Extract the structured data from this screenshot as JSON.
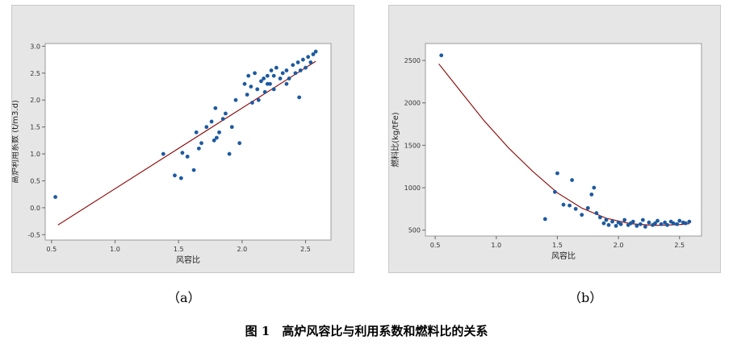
{
  "figure": {
    "sublabel_a": "（a）",
    "sublabel_b": "（b）",
    "caption": "图 1　高炉风容比与利用系数和燃料比的关系"
  },
  "colors": {
    "points": "#1d5aa0",
    "fit": "#8b0000",
    "panel_bg": "#e6e6e6",
    "plot_bg": "#ffffff"
  },
  "chart_data": [
    {
      "type": "scatter",
      "xlabel": "风容比",
      "ylabel": "高炉利用系数 (t/m3.d)",
      "xlim": [
        0.45,
        2.7
      ],
      "ylim": [
        -0.6,
        3.05
      ],
      "xticks": [
        "0.5",
        "1.0",
        "1.5",
        "2.0",
        "2.5"
      ],
      "yticks": [
        "-0.5",
        "0.0",
        "0.5",
        "1.0",
        "1.5",
        "2.0",
        "2.5",
        "3.0"
      ],
      "grid": false,
      "fit_line": {
        "x": [
          0.55,
          2.58
        ],
        "y": [
          -0.32,
          2.72
        ]
      },
      "x": [
        0.53,
        1.38,
        1.47,
        1.52,
        1.53,
        1.57,
        1.62,
        1.64,
        1.66,
        1.68,
        1.72,
        1.76,
        1.78,
        1.79,
        1.8,
        1.82,
        1.85,
        1.87,
        1.9,
        1.92,
        1.95,
        1.98,
        2.02,
        2.04,
        2.05,
        2.07,
        2.08,
        2.1,
        2.12,
        2.13,
        2.15,
        2.17,
        2.18,
        2.2,
        2.22,
        2.23,
        2.25,
        2.27,
        2.3,
        2.32,
        2.35,
        2.37,
        2.4,
        2.42,
        2.44,
        2.46,
        2.48,
        2.5,
        2.52,
        2.54,
        2.56,
        2.58,
        2.2,
        2.25,
        2.35,
        2.45
      ],
      "y": [
        0.2,
        1.0,
        0.6,
        0.55,
        1.02,
        0.95,
        0.7,
        1.4,
        1.1,
        1.2,
        1.5,
        1.6,
        1.25,
        1.85,
        1.3,
        1.4,
        1.65,
        1.75,
        1.0,
        1.5,
        2.0,
        1.2,
        2.3,
        2.1,
        2.45,
        2.25,
        1.95,
        2.5,
        2.2,
        2.0,
        2.35,
        2.4,
        2.15,
        2.45,
        2.3,
        2.55,
        2.2,
        2.6,
        2.4,
        2.5,
        2.55,
        2.4,
        2.65,
        2.5,
        2.7,
        2.55,
        2.75,
        2.6,
        2.8,
        2.7,
        2.85,
        2.9,
        2.3,
        2.45,
        2.3,
        2.05
      ]
    },
    {
      "type": "scatter",
      "xlabel": "风容比",
      "ylabel": "燃料比(kg/tFe)",
      "xlim": [
        0.42,
        2.68
      ],
      "ylim": [
        430,
        2700
      ],
      "xticks": [
        "0.5",
        "1.0",
        "1.5",
        "2.0",
        "2.5"
      ],
      "yticks": [
        "500",
        "1000",
        "1500",
        "2000",
        "2500"
      ],
      "grid": false,
      "fit_line": {
        "x": [
          0.53,
          0.7,
          0.9,
          1.1,
          1.3,
          1.5,
          1.7,
          1.9,
          2.1,
          2.3,
          2.5,
          2.58
        ],
        "y": [
          2460,
          2150,
          1790,
          1470,
          1190,
          940,
          760,
          640,
          575,
          555,
          565,
          575
        ]
      },
      "x": [
        0.55,
        1.4,
        1.48,
        1.5,
        1.55,
        1.6,
        1.62,
        1.65,
        1.7,
        1.75,
        1.78,
        1.8,
        1.82,
        1.85,
        1.88,
        1.9,
        1.92,
        1.95,
        1.98,
        2.0,
        2.02,
        2.05,
        2.08,
        2.1,
        2.12,
        2.15,
        2.18,
        2.2,
        2.22,
        2.25,
        2.28,
        2.3,
        2.32,
        2.35,
        2.38,
        2.4,
        2.43,
        2.45,
        2.48,
        2.5,
        2.53,
        2.55,
        2.58
      ],
      "y": [
        2560,
        630,
        950,
        1170,
        800,
        790,
        1090,
        750,
        680,
        760,
        920,
        1000,
        700,
        650,
        580,
        620,
        560,
        600,
        550,
        590,
        570,
        620,
        560,
        580,
        600,
        550,
        570,
        620,
        540,
        590,
        560,
        580,
        610,
        570,
        590,
        560,
        600,
        580,
        570,
        610,
        590,
        580,
        600
      ]
    }
  ]
}
